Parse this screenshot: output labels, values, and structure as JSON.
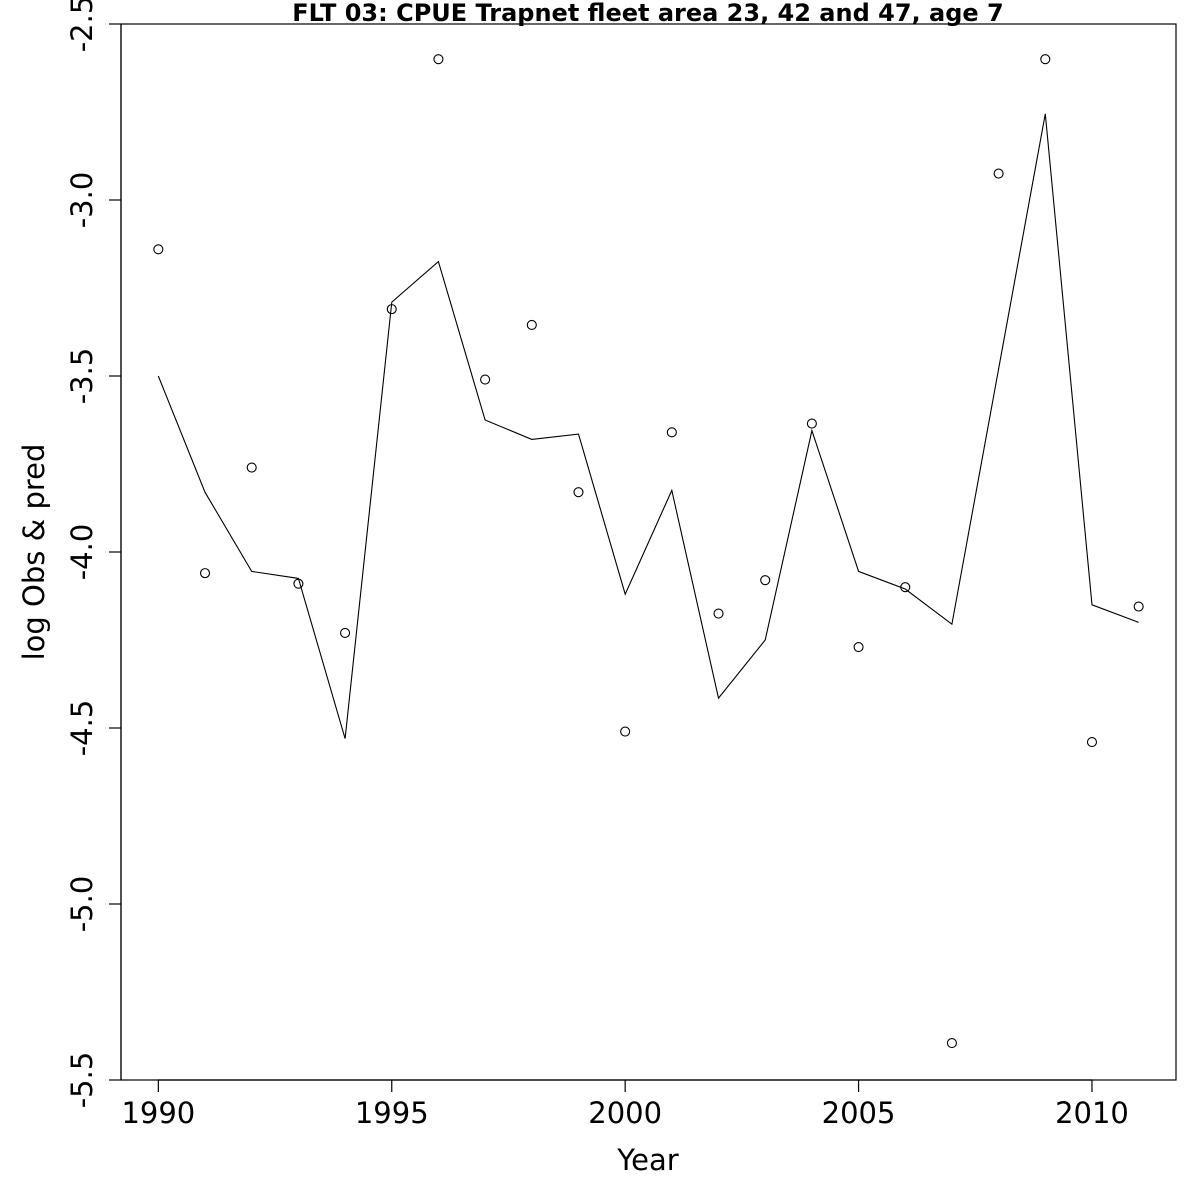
{
  "chart_data": {
    "type": "scatter",
    "title": "FLT 03: CPUE Trapnet fleet area 23, 42 and 47, age 7",
    "xlabel": "Year",
    "ylabel": "log Obs & pred",
    "xlim": [
      1989.2,
      2011.8
    ],
    "ylim": [
      -5.5,
      -2.5
    ],
    "x_ticks": [
      1990,
      1995,
      2000,
      2005,
      2010
    ],
    "x_tick_labels": [
      "1990",
      "1995",
      "2000",
      "2005",
      "2010"
    ],
    "y_ticks": [
      -5.5,
      -5.0,
      -4.5,
      -4.0,
      -3.5,
      -3.0,
      -2.5
    ],
    "y_tick_labels": [
      "-5.5",
      "-5.0",
      "-4.5",
      "-4.0",
      "-3.5",
      "-3.0",
      "-2.5"
    ],
    "grid": false,
    "series": [
      {
        "style": "points",
        "x": [
          1990,
          1991,
          1992,
          1993,
          1994,
          1995,
          1996,
          1997,
          1998,
          1999,
          2000,
          2001,
          2002,
          2003,
          2004,
          2005,
          2006,
          2007,
          2008,
          2009,
          2010,
          2011
        ],
        "y": [
          -3.14,
          -4.06,
          -3.76,
          -4.09,
          -4.23,
          -3.31,
          -2.6,
          -3.51,
          -3.355,
          -3.83,
          -4.51,
          -3.66,
          -4.175,
          -4.08,
          -3.635,
          -4.27,
          -4.1,
          -5.395,
          -2.925,
          -2.6,
          -4.54,
          -4.155
        ]
      },
      {
        "style": "line",
        "x": [
          1990,
          1991,
          1992,
          1993,
          1994,
          1995,
          1996,
          1997,
          1998,
          1999,
          2000,
          2001,
          2002,
          2003,
          2004,
          2005,
          2006,
          2007,
          2008,
          2009,
          2010,
          2011
        ],
        "y": [
          -3.5,
          -3.83,
          -4.055,
          -4.075,
          -4.53,
          -3.29,
          -3.175,
          -3.625,
          -3.68,
          -3.665,
          -4.12,
          -3.825,
          -4.415,
          -4.25,
          -3.655,
          -4.055,
          -4.105,
          -4.205,
          -3.48,
          -2.755,
          -4.15,
          -4.2
        ]
      }
    ]
  }
}
